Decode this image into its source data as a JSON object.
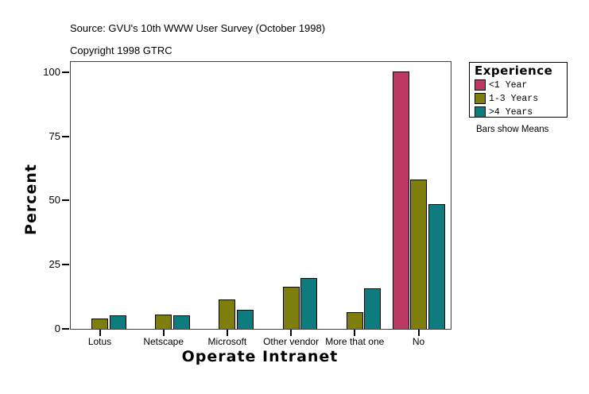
{
  "header": {
    "source_line": "Source: GVU's 10th WWW User Survey (October 1998)",
    "copyright_line": "Copyright 1998 GTRC"
  },
  "legend": {
    "title": "Experience",
    "note": "Bars show Means"
  },
  "colors": {
    "series_lt1": "#bc3a62",
    "series_1to3": "#7e7e0e",
    "series_gt4": "#0e7b7e",
    "frame": "#404040"
  },
  "chart_data": {
    "type": "bar",
    "title": "",
    "xlabel": "Operate Intranet",
    "ylabel": "Percent",
    "ylim": [
      0,
      100
    ],
    "yticks": [
      0,
      25,
      50,
      75,
      100
    ],
    "grid": false,
    "legend_position": "right",
    "legend_title": "Experience",
    "annotation": "Bars show Means",
    "categories": [
      "Lotus",
      "Netscape",
      "Microsoft",
      "Other vendor",
      "More that one",
      "No"
    ],
    "series": [
      {
        "name": "<1 Year",
        "color": "#bc3a62",
        "values": [
          0,
          0,
          0,
          0,
          0,
          100
        ]
      },
      {
        "name": "1-3 Years",
        "color": "#7e7e0e",
        "values": [
          3.8,
          5.2,
          11.0,
          16.0,
          6.1,
          57.9
        ]
      },
      {
        "name": ">4 Years",
        "color": "#0e7b7e",
        "values": [
          4.9,
          4.9,
          7.1,
          19.5,
          15.4,
          48.4
        ]
      }
    ]
  }
}
